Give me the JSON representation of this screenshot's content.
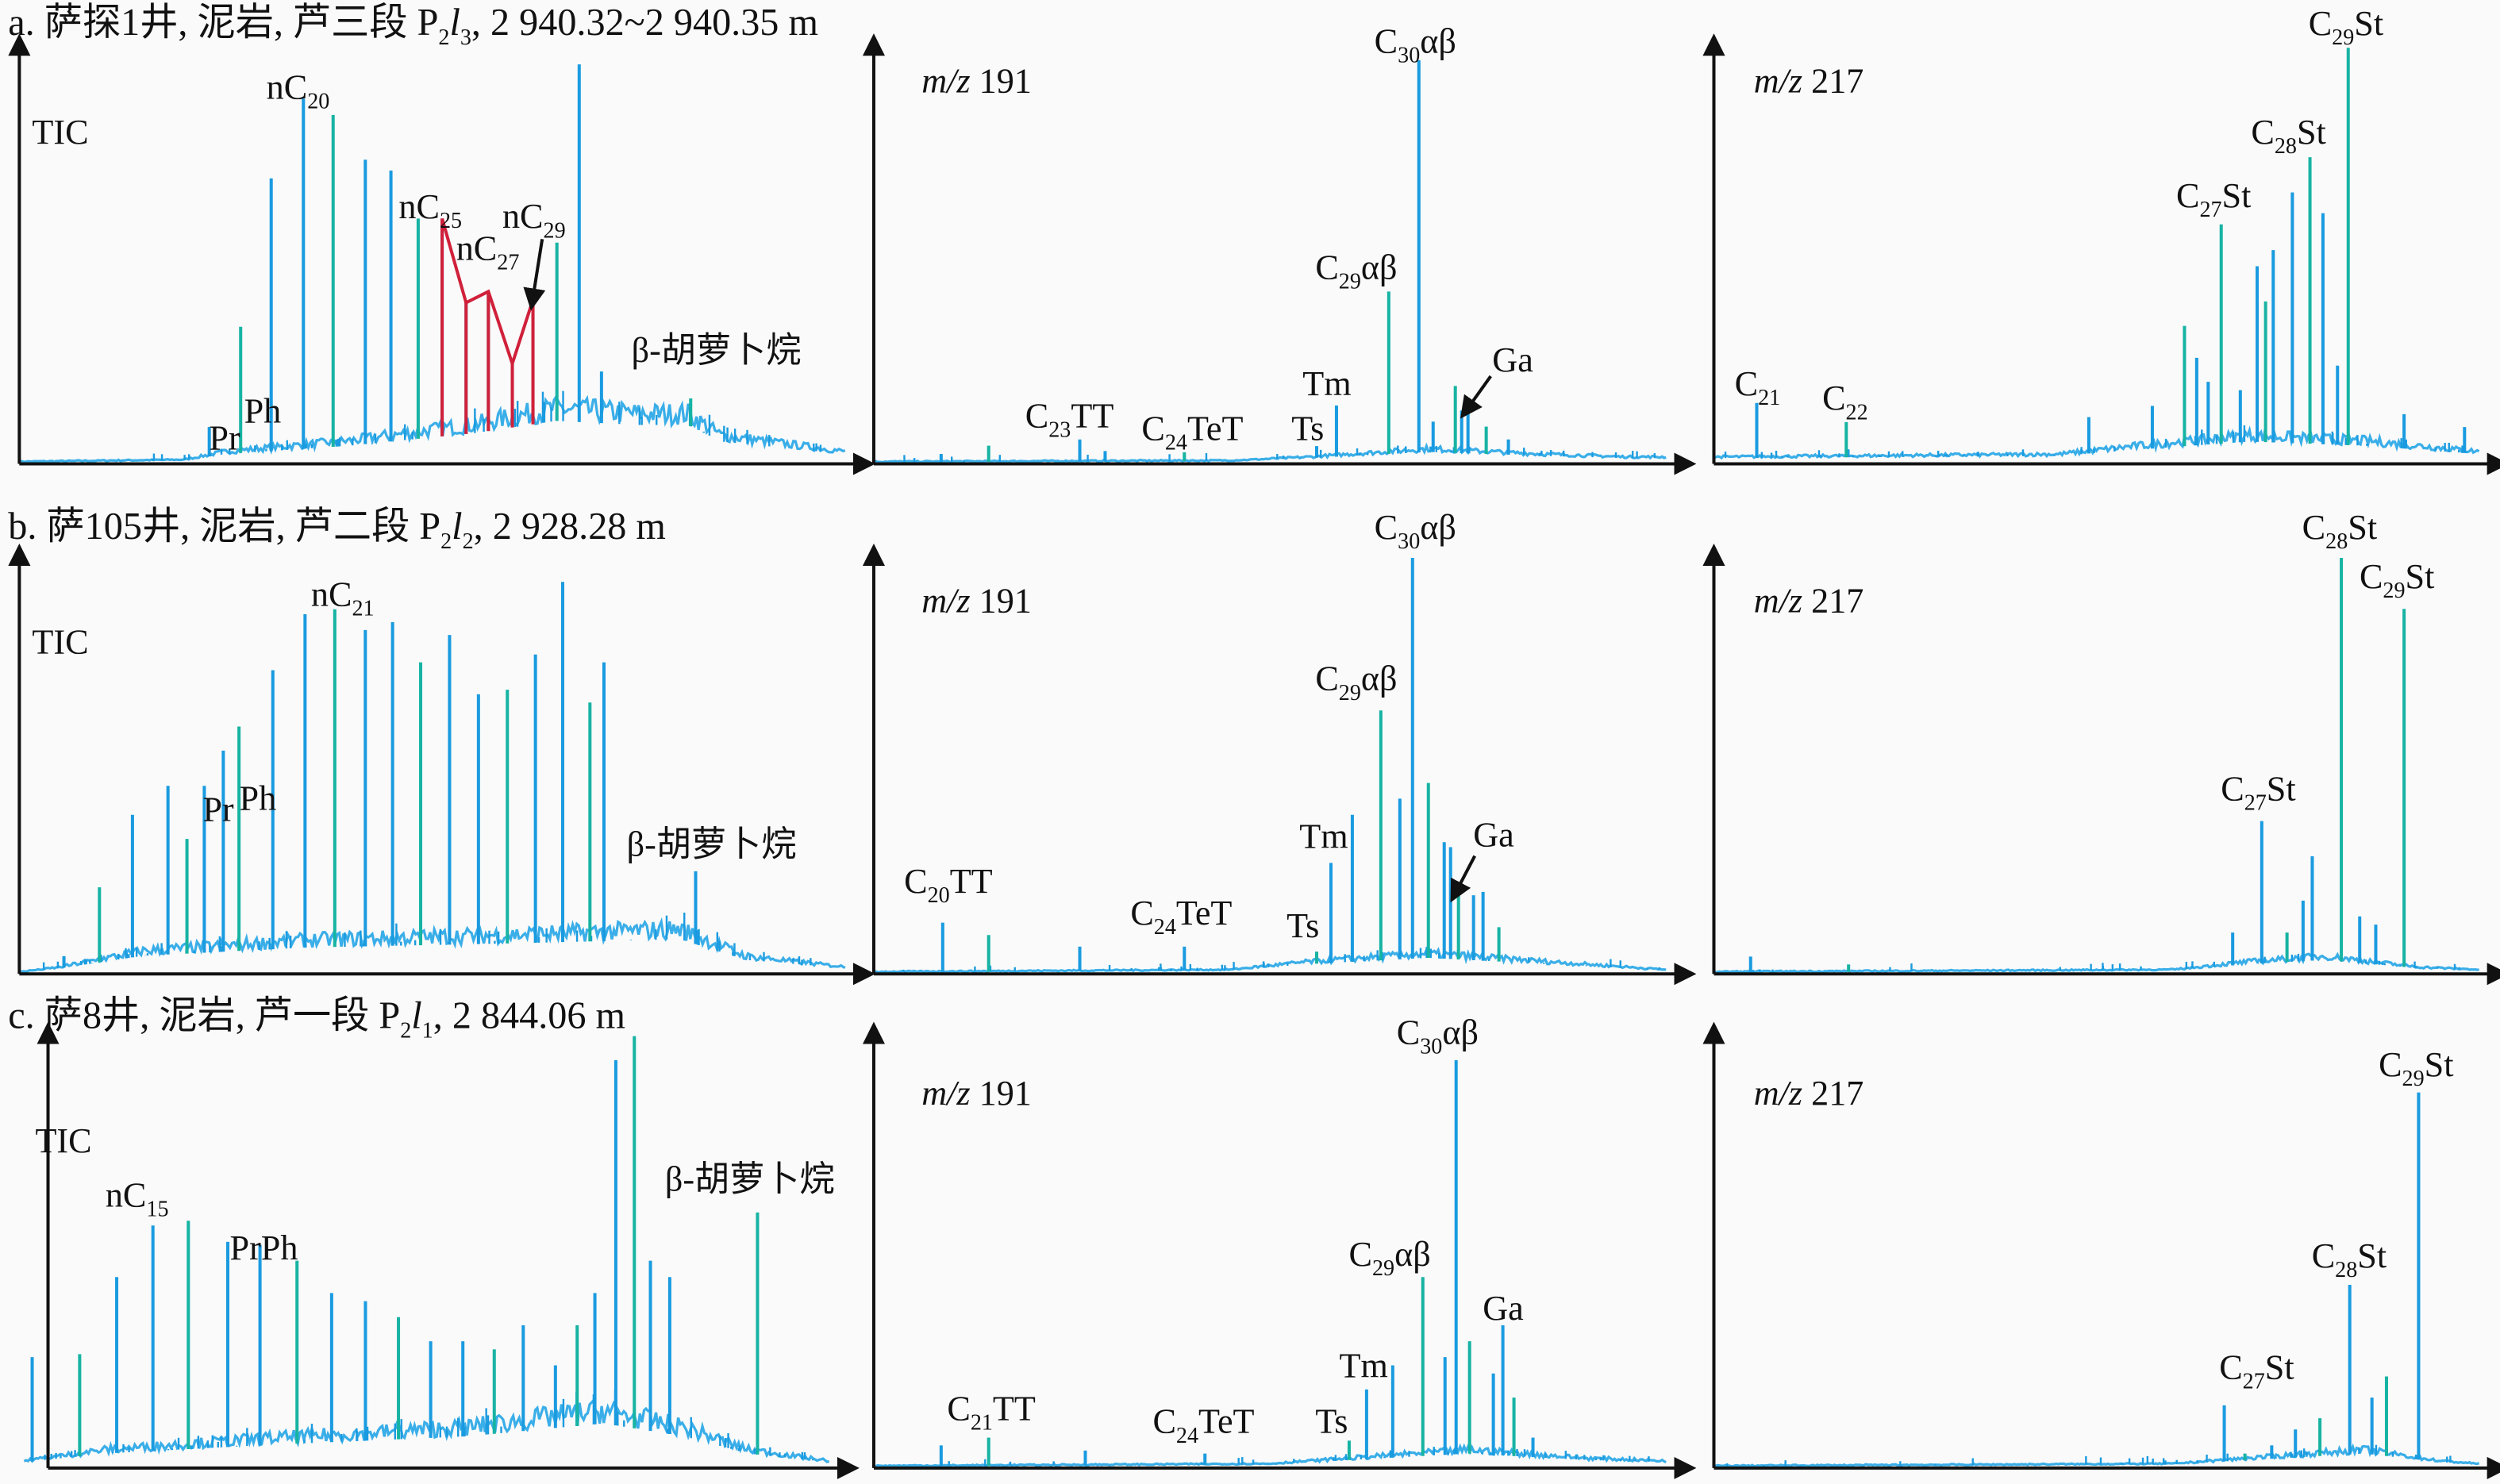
{
  "rows": [
    {
      "title": {
        "pre": "a. 萨探1井, 泥岩, 芦三段 P",
        "sub1": "2",
        "ital": "l",
        "sub2": "3",
        "post": ", 2 940.32~2 940.35 m"
      }
    },
    {
      "title": {
        "pre": "b. 萨105井, 泥岩, 芦二段 P",
        "sub1": "2",
        "ital": "l",
        "sub2": "2",
        "post": ", 2 928.28 m"
      }
    },
    {
      "title": {
        "pre": "c. 萨8井, 泥岩, 芦一段 P",
        "sub1": "2",
        "ital": "l",
        "sub2": "1",
        "post": ", 2 844.06 m"
      }
    }
  ],
  "colors": {
    "peak": "#1a9be0",
    "peak_alt": "#17b3a3",
    "baseline": "#3aaee8",
    "highlight": "#d0203a",
    "axis": "#111111"
  },
  "chart_data": [
    {
      "type": "line",
      "row": "a",
      "trace": {
        "ital": "",
        "post": "TIC"
      },
      "peaks": [
        [
          23,
          8.5
        ],
        [
          26.8,
          32.7
        ],
        [
          30.5,
          68.5
        ],
        [
          34.4,
          87.7
        ],
        [
          38,
          83.8
        ],
        [
          41.9,
          73
        ],
        [
          45,
          70.4
        ],
        [
          48.3,
          58.8
        ],
        [
          51.2,
          58.8
        ],
        [
          54.1,
          38.5
        ],
        [
          56.8,
          41.2
        ],
        [
          59.7,
          23.8
        ],
        [
          62.2,
          39.2
        ],
        [
          65.1,
          53
        ],
        [
          67.8,
          96
        ],
        [
          70.5,
          21.9
        ],
        [
          81.3,
          15.4
        ]
      ],
      "baseline": [
        [
          0,
          0
        ],
        [
          20,
          0.5
        ],
        [
          25,
          2
        ],
        [
          40,
          4
        ],
        [
          55,
          7
        ],
        [
          65,
          10
        ],
        [
          75,
          9
        ],
        [
          81,
          9
        ],
        [
          85,
          5
        ],
        [
          100,
          2
        ]
      ],
      "connector": [
        [
          51.2,
          58.8
        ],
        [
          54.1,
          38.5
        ],
        [
          56.8,
          41.2
        ],
        [
          59.7,
          23.8
        ],
        [
          62.2,
          39.2
        ]
      ],
      "labels": [
        {
          "pre": "Pr",
          "sub": "",
          "post": ""
        },
        {
          "pre": "Ph",
          "sub": "",
          "post": ""
        },
        {
          "pre": "nC",
          "sub": "20",
          "post": ""
        },
        {
          "pre": "nC",
          "sub": "25",
          "post": ""
        },
        {
          "pre": "nC",
          "sub": "27",
          "post": ""
        },
        {
          "pre": "nC",
          "sub": "29",
          "post": ""
        },
        {
          "pre": "β-胡萝卜烷",
          "sub": "",
          "post": ""
        }
      ]
    },
    {
      "type": "line",
      "row": "a",
      "trace": {
        "ital": "m/z",
        "post": " 191"
      },
      "peaks": [
        [
          8.5,
          2
        ],
        [
          14.5,
          4
        ],
        [
          26,
          5.5
        ],
        [
          29.2,
          2.7
        ],
        [
          39.2,
          2.4
        ],
        [
          55.9,
          3.9
        ],
        [
          58.4,
          13.7
        ],
        [
          65,
          41.2
        ],
        [
          68.8,
          97
        ],
        [
          70.6,
          9.8
        ],
        [
          73.4,
          18.4
        ],
        [
          74.2,
          12.5
        ],
        [
          75,
          12.5
        ],
        [
          77.3,
          8.6
        ],
        [
          80.1,
          5.5
        ]
      ],
      "baseline": [
        [
          0,
          0
        ],
        [
          45,
          0.3
        ],
        [
          55,
          1
        ],
        [
          70,
          2.5
        ],
        [
          85,
          1.5
        ],
        [
          95,
          1
        ],
        [
          100,
          1
        ]
      ],
      "labels": [
        {
          "pre": "C",
          "sub": "23",
          "post": "TT"
        },
        {
          "pre": "C",
          "sub": "24",
          "post": "TeT"
        },
        {
          "pre": "Ts",
          "sub": "",
          "post": ""
        },
        {
          "pre": "Tm",
          "sub": "",
          "post": ""
        },
        {
          "pre": "C",
          "sub": "29",
          "post": "αβ"
        },
        {
          "pre": "C",
          "sub": "30",
          "post": "αβ"
        },
        {
          "pre": "Ga",
          "sub": "",
          "post": ""
        }
      ]
    },
    {
      "type": "line",
      "row": "a",
      "trace": {
        "ital": "m/z",
        "post": " 217"
      },
      "peaks": [
        [
          5.6,
          14.3
        ],
        [
          17.3,
          9.7
        ],
        [
          49,
          10.9
        ],
        [
          57.3,
          13.6
        ],
        [
          61.5,
          32.9
        ],
        [
          63.1,
          25.2
        ],
        [
          64.6,
          19.4
        ],
        [
          66.3,
          57.4
        ],
        [
          68.8,
          17.4
        ],
        [
          71,
          47.3
        ],
        [
          72.1,
          38.8
        ],
        [
          73.1,
          51.2
        ],
        [
          75.6,
          65.1
        ],
        [
          77.9,
          73.6
        ],
        [
          79.6,
          60.1
        ],
        [
          81.5,
          23.3
        ],
        [
          82.9,
          100
        ],
        [
          90.2,
          11.6
        ],
        [
          98.1,
          8.5
        ]
      ],
      "baseline": [
        [
          0,
          1
        ],
        [
          45,
          1.5
        ],
        [
          55,
          3
        ],
        [
          70,
          5
        ],
        [
          85,
          4
        ],
        [
          100,
          2
        ]
      ],
      "labels": [
        {
          "pre": "C",
          "sub": "21",
          "post": ""
        },
        {
          "pre": "C",
          "sub": "22",
          "post": ""
        },
        {
          "pre": "C",
          "sub": "27",
          "post": "St"
        },
        {
          "pre": "C",
          "sub": "28",
          "post": "St"
        },
        {
          "pre": "C",
          "sub": "29",
          "post": "St"
        }
      ]
    },
    {
      "type": "line",
      "row": "b",
      "trace": {
        "ital": "",
        "post": "TIC"
      },
      "peaks": [
        [
          5.4,
          3.9
        ],
        [
          9.7,
          20.5
        ],
        [
          13.7,
          38
        ],
        [
          18,
          45
        ],
        [
          20.3,
          32.2
        ],
        [
          22.4,
          45
        ],
        [
          24.7,
          53.5
        ],
        [
          26.6,
          59.3
        ],
        [
          30.7,
          72.9
        ],
        [
          34.6,
          86.4
        ],
        [
          38.2,
          87.6
        ],
        [
          41.9,
          82.6
        ],
        [
          45.2,
          84.5
        ],
        [
          48.6,
          74.8
        ],
        [
          52.1,
          81.4
        ],
        [
          55.6,
          67.1
        ],
        [
          59.1,
          68.2
        ],
        [
          62.5,
          76.7
        ],
        [
          65.8,
          94.2
        ],
        [
          69.1,
          65.1
        ],
        [
          70.8,
          74.8
        ],
        [
          81.9,
          24.4
        ]
      ],
      "baseline": [
        [
          0,
          0
        ],
        [
          5,
          1
        ],
        [
          15,
          4
        ],
        [
          35,
          6
        ],
        [
          60,
          7
        ],
        [
          80,
          8
        ],
        [
          88,
          3
        ],
        [
          100,
          1
        ]
      ],
      "labels": [
        {
          "pre": "Pr",
          "sub": "",
          "post": ""
        },
        {
          "pre": "Ph",
          "sub": "",
          "post": ""
        },
        {
          "pre": "nC",
          "sub": "21",
          "post": ""
        },
        {
          "pre": "β-胡萝卜烷",
          "sub": "",
          "post": ""
        }
      ]
    },
    {
      "type": "line",
      "row": "b",
      "trace": {
        "ital": "m/z",
        "post": " 191"
      },
      "peaks": [
        [
          8.7,
          12
        ],
        [
          14.5,
          9
        ],
        [
          26,
          6.2
        ],
        [
          39.2,
          6.2
        ],
        [
          55.9,
          5
        ],
        [
          57.7,
          26.4
        ],
        [
          60.4,
          38
        ],
        [
          64,
          63.2
        ],
        [
          66.4,
          41.9
        ],
        [
          68,
          100
        ],
        [
          70,
          45.7
        ],
        [
          72,
          31.4
        ],
        [
          72.8,
          30.2
        ],
        [
          73.8,
          18.6
        ],
        [
          75.7,
          18.6
        ],
        [
          76.9,
          19.4
        ],
        [
          78.9,
          10.9
        ]
      ],
      "baseline": [
        [
          0,
          0
        ],
        [
          45,
          0.5
        ],
        [
          55,
          2
        ],
        [
          70,
          3.5
        ],
        [
          85,
          2
        ],
        [
          100,
          0.5
        ]
      ],
      "labels": [
        {
          "pre": "C",
          "sub": "20",
          "post": "TT"
        },
        {
          "pre": "C",
          "sub": "24",
          "post": "TeT"
        },
        {
          "pre": "Ts",
          "sub": "",
          "post": ""
        },
        {
          "pre": "Tm",
          "sub": "",
          "post": ""
        },
        {
          "pre": "C",
          "sub": "29",
          "post": "αβ"
        },
        {
          "pre": "C",
          "sub": "30",
          "post": "αβ"
        },
        {
          "pre": "Ga",
          "sub": "",
          "post": ""
        }
      ]
    },
    {
      "type": "line",
      "row": "b",
      "trace": {
        "ital": "m/z",
        "post": " 217"
      },
      "peaks": [
        [
          4.8,
          3.8
        ],
        [
          17.6,
          1.9
        ],
        [
          67.8,
          9.6
        ],
        [
          71.6,
          36.5
        ],
        [
          74.9,
          9.6
        ],
        [
          77,
          17.3
        ],
        [
          78.2,
          28
        ],
        [
          82,
          100
        ],
        [
          84.4,
          13.5
        ],
        [
          86.5,
          11.5
        ],
        [
          90.2,
          87.7
        ]
      ],
      "baseline": [
        [
          0,
          0
        ],
        [
          60,
          0.5
        ],
        [
          70,
          2
        ],
        [
          80,
          3
        ],
        [
          92,
          1
        ],
        [
          100,
          0.5
        ]
      ],
      "labels": [
        {
          "pre": "C",
          "sub": "27",
          "post": "St"
        },
        {
          "pre": "C",
          "sub": "28",
          "post": "St"
        },
        {
          "pre": "C",
          "sub": "29",
          "post": "St"
        }
      ]
    },
    {
      "type": "line",
      "row": "c",
      "trace": {
        "ital": "",
        "post": "TIC"
      },
      "peaks": [
        [
          1,
          25.4
        ],
        [
          6.9,
          26.1
        ],
        [
          11.5,
          44
        ],
        [
          16,
          56
        ],
        [
          20.4,
          57.1
        ],
        [
          25.3,
          52.2
        ],
        [
          29.3,
          51.5
        ],
        [
          33.9,
          47.8
        ],
        [
          38.2,
          40.3
        ],
        [
          42.4,
          38.4
        ],
        [
          46.5,
          34.7
        ],
        [
          50.5,
          29.1
        ],
        [
          54.5,
          29.1
        ],
        [
          58.4,
          27.2
        ],
        [
          62,
          32.8
        ],
        [
          66,
          23.5
        ],
        [
          68.7,
          32.8
        ],
        [
          70.9,
          40.3
        ],
        [
          73.5,
          94.4
        ],
        [
          75.8,
          100
        ],
        [
          77.8,
          47.8
        ],
        [
          80.2,
          44
        ],
        [
          91.1,
          59
        ]
      ],
      "baseline": [
        [
          0,
          1
        ],
        [
          10,
          3
        ],
        [
          30,
          5
        ],
        [
          55,
          7
        ],
        [
          72,
          10
        ],
        [
          82,
          7
        ],
        [
          90,
          3
        ],
        [
          100,
          1
        ]
      ],
      "labels": [
        {
          "pre": "nC",
          "sub": "15",
          "post": ""
        },
        {
          "pre": "PrPh",
          "sub": "",
          "post": ""
        },
        {
          "pre": "β-胡萝卜烷",
          "sub": "",
          "post": ""
        }
      ]
    },
    {
      "type": "line",
      "row": "c",
      "trace": {
        "ital": "m/z",
        "post": " 191"
      },
      "peaks": [
        [
          8.5,
          4.9
        ],
        [
          14.5,
          6.7
        ],
        [
          26.7,
          3.7
        ],
        [
          41.8,
          3
        ],
        [
          60,
          6
        ],
        [
          62.2,
          17.9
        ],
        [
          65.5,
          23.5
        ],
        [
          69.3,
          44
        ],
        [
          72.1,
          25.4
        ],
        [
          73.5,
          94.4
        ],
        [
          75.2,
          29.1
        ],
        [
          78.2,
          21.6
        ],
        [
          79.4,
          32.8
        ],
        [
          80.8,
          16
        ],
        [
          83.2,
          6.7
        ]
      ],
      "baseline": [
        [
          0,
          0
        ],
        [
          50,
          0.5
        ],
        [
          60,
          1.5
        ],
        [
          75,
          3
        ],
        [
          90,
          1.5
        ],
        [
          100,
          1
        ]
      ],
      "labels": [
        {
          "pre": "C",
          "sub": "21",
          "post": "TT"
        },
        {
          "pre": "C",
          "sub": "24",
          "post": "TeT"
        },
        {
          "pre": "Ts",
          "sub": "",
          "post": ""
        },
        {
          "pre": "Tm",
          "sub": "",
          "post": ""
        },
        {
          "pre": "C",
          "sub": "29",
          "post": "αβ"
        },
        {
          "pre": "C",
          "sub": "30",
          "post": "αβ"
        },
        {
          "pre": "Ga",
          "sub": "",
          "post": ""
        }
      ]
    },
    {
      "type": "line",
      "row": "c",
      "trace": {
        "ital": "m/z",
        "post": " 217"
      },
      "peaks": [
        [
          66.7,
          14.2
        ],
        [
          69.4,
          3
        ],
        [
          72.9,
          4.9
        ],
        [
          76,
          8.6
        ],
        [
          79.2,
          11.2
        ],
        [
          83.1,
          42.2
        ],
        [
          86,
          16
        ],
        [
          87.9,
          20.9
        ],
        [
          92.1,
          86.9
        ]
      ],
      "baseline": [
        [
          0,
          0
        ],
        [
          60,
          0.5
        ],
        [
          70,
          1.5
        ],
        [
          85,
          3
        ],
        [
          95,
          1
        ],
        [
          100,
          0.5
        ]
      ],
      "labels": [
        {
          "pre": "C",
          "sub": "27",
          "post": "St"
        },
        {
          "pre": "C",
          "sub": "28",
          "post": "St"
        },
        {
          "pre": "C",
          "sub": "29",
          "post": "St"
        }
      ]
    }
  ]
}
